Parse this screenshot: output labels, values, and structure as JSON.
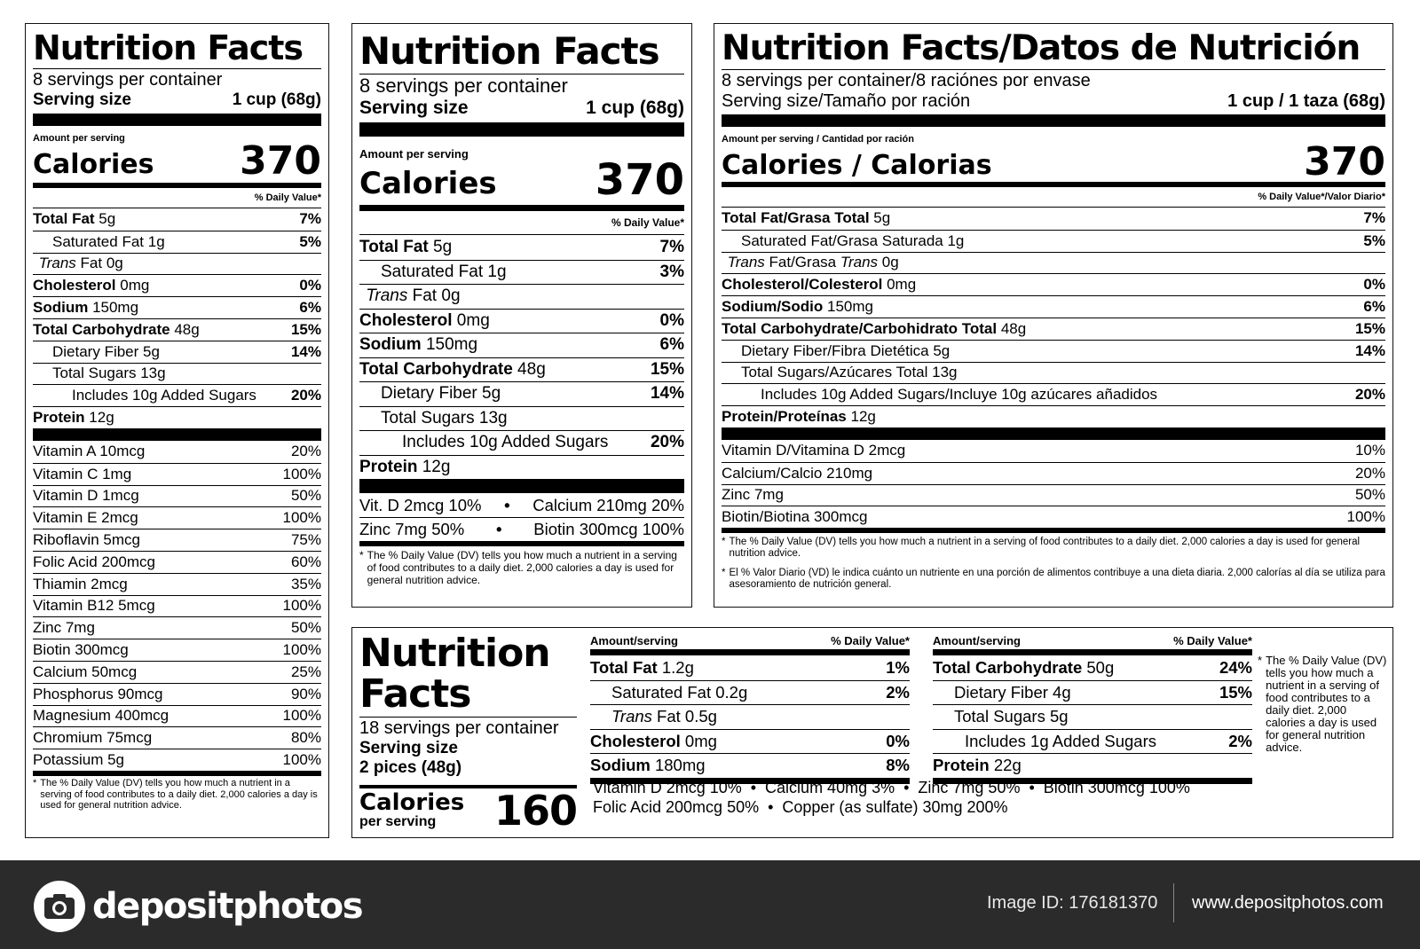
{
  "label1": {
    "title": "Nutrition Facts",
    "servings": "8 servings per container",
    "serving_size_label": "Serving size",
    "serving_size_value": "1 cup (68g)",
    "amount_per_serving": "Amount per serving",
    "calories_label": "Calories",
    "calories_value": "370",
    "dv_header": "% Daily Value*",
    "nutrients": [
      {
        "name": "Total Fat",
        "amount": "5g",
        "dv": "7%",
        "bold": true
      },
      {
        "name": "Saturated Fat",
        "amount": "1g",
        "dv": "5%",
        "indent": 1
      },
      {
        "name": "Trans",
        "suffix": " Fat",
        "amount": "0g",
        "dv": "",
        "indent": 0.3,
        "italic": true
      },
      {
        "name": "Cholesterol",
        "amount": "0mg",
        "dv": "0%",
        "bold": true
      },
      {
        "name": "Sodium",
        "amount": "150mg",
        "dv": "6%",
        "bold": true
      },
      {
        "name": "Total Carbohydrate",
        "amount": "48g",
        "dv": "15%",
        "bold": true
      },
      {
        "name": "Dietary Fiber",
        "amount": "5g",
        "dv": "14%",
        "indent": 1
      },
      {
        "name": "Total Sugars",
        "amount": "13g",
        "dv": "",
        "indent": 1
      },
      {
        "name": "Includes 10g Added Sugars",
        "amount": "",
        "dv": "20%",
        "indent": 2
      },
      {
        "name": "Protein",
        "amount": "12g",
        "dv": "",
        "bold": true
      }
    ],
    "vitamins": [
      {
        "name": "Vitamin A 10mcg",
        "dv": "20%"
      },
      {
        "name": "Vitamin C 1mg",
        "dv": "100%"
      },
      {
        "name": "Vitamin D 1mcg",
        "dv": "50%"
      },
      {
        "name": "Vitamin E 2mcg",
        "dv": "100%"
      },
      {
        "name": "Riboflavin 5mcg",
        "dv": "75%"
      },
      {
        "name": "Folic Acid 200mcg",
        "dv": "60%"
      },
      {
        "name": "Thiamin 2mcg",
        "dv": "35%"
      },
      {
        "name": "Vitamin B12 5mcg",
        "dv": "100%"
      },
      {
        "name": "Zinc 7mg",
        "dv": "50%"
      },
      {
        "name": "Biotin 300mcg",
        "dv": "100%"
      },
      {
        "name": "Calcium 50mcg",
        "dv": "25%"
      },
      {
        "name": "Phosphorus 90mcg",
        "dv": "90%"
      },
      {
        "name": "Magnesium 400mcg",
        "dv": "100%"
      },
      {
        "name": "Chromium 75mcg",
        "dv": "80%"
      },
      {
        "name": "Potassium 5g",
        "dv": "100%"
      }
    ],
    "footnote_mark": "*",
    "footnote": "The % Daily Value (DV) tells you how much a nutrient in a serving of food contributes to a daily diet. 2,000 calories a day is used for general nutrition advice."
  },
  "label2": {
    "title": "Nutrition Facts",
    "servings": "8 servings per container",
    "serving_size_label": "Serving size",
    "serving_size_value": "1 cup (68g)",
    "amount_per_serving": "Amount per serving",
    "calories_label": "Calories",
    "calories_value": "370",
    "dv_header": "% Daily Value*",
    "nutrients": [
      {
        "name": "Total Fat",
        "amount": "5g",
        "dv": "7%",
        "bold": true
      },
      {
        "name": "Saturated Fat",
        "amount": "1g",
        "dv": "3%",
        "indent": 1
      },
      {
        "name": "Trans",
        "suffix": " Fat",
        "amount": "0g",
        "dv": "",
        "indent": 0.3,
        "italic": true
      },
      {
        "name": "Cholesterol",
        "amount": "0mg",
        "dv": "0%",
        "bold": true
      },
      {
        "name": "Sodium",
        "amount": "150mg",
        "dv": "6%",
        "bold": true
      },
      {
        "name": "Total Carbohydrate",
        "amount": "48g",
        "dv": "15%",
        "bold": true
      },
      {
        "name": "Dietary Fiber",
        "amount": "5g",
        "dv": "14%",
        "indent": 1
      },
      {
        "name": "Total Sugars",
        "amount": "13g",
        "dv": "",
        "indent": 1
      },
      {
        "name": "Includes 10g Added Sugars",
        "amount": "",
        "dv": "20%",
        "indent": 2
      },
      {
        "name": "Protein",
        "amount": "12g",
        "dv": "",
        "bold": true
      }
    ],
    "vitamin_rows": [
      [
        "Vit. D 2mcg 10%",
        "Calcium 210mg 20%"
      ],
      [
        "Zinc 7mg 50%",
        "Biotin 300mcg 100%"
      ]
    ],
    "bullet": "•",
    "footnote_mark": "*",
    "footnote": "The % Daily Value (DV) tells you how much a nutrient in a serving of food contributes to a daily diet. 2,000 calories a day is used for general nutrition advice."
  },
  "label3": {
    "title": "Nutrition Facts/Datos de Nutrición",
    "servings": "8 servings per container/8 raciónes por envase",
    "serving_size_label": "Serving size/Tamaño por ración",
    "serving_size_value": "1 cup / 1 taza (68g)",
    "amount_per_serving": "Amount per serving / Cantidad por ración",
    "calories_label": "Calories / Calorias",
    "calories_value": "370",
    "dv_header": "% Daily Value*/Valor Diario*",
    "nutrients": [
      {
        "name": "Total Fat/Grasa Total",
        "amount": "5g",
        "dv": "7%",
        "bold": true
      },
      {
        "name": "Saturated Fat/Grasa Saturada",
        "amount": "1g",
        "dv": "5%",
        "indent": 1
      },
      {
        "name": "Trans",
        "suffix": " Fat/Grasa ",
        "suffix_italic": "Trans",
        "amount": "0g",
        "dv": "",
        "indent": 0.3,
        "italic": true
      },
      {
        "name": "Cholesterol/Colesterol",
        "amount": "0mg",
        "dv": "0%",
        "bold": true
      },
      {
        "name": "Sodium/Sodio",
        "amount": "150mg",
        "dv": "6%",
        "bold": true
      },
      {
        "name": "Total Carbohydrate/Carbohidrato Total",
        "amount": "48g",
        "dv": "15%",
        "bold": true
      },
      {
        "name": "Dietary Fiber/Fibra Dietética",
        "amount": "5g",
        "dv": "14%",
        "indent": 1
      },
      {
        "name": "Total Sugars/Azúcares Total",
        "amount": "13g",
        "dv": "",
        "indent": 1
      },
      {
        "name": "Includes 10g Added Sugars/Incluye 10g azúcares añadidos",
        "amount": "",
        "dv": "20%",
        "indent": 2
      },
      {
        "name": "Protein/Proteínas",
        "amount": "12g",
        "dv": "",
        "bold": true
      }
    ],
    "vitamins": [
      {
        "name": "Vitamin D/Vitamina D 2mcg",
        "dv": "10%"
      },
      {
        "name": "Calcium/Calcio 210mg",
        "dv": "20%"
      },
      {
        "name": "Zinc 7mg",
        "dv": "50%"
      },
      {
        "name": "Biotin/Biotina 300mcg",
        "dv": "100%"
      }
    ],
    "footnote_mark": "*",
    "footnote_en": "The % Daily Value (DV) tells you how much a nutrient in a serving of food contributes to a daily diet. 2,000 calories a day is used for general nutrition advice.",
    "footnote_es": "El % Valor Diario (VD) le indica cuánto un nutriente en una porción de alimentos contribuye a una dieta diaria. 2,000 calorías al día se utiliza para asesoramiento de nutrición general."
  },
  "label4": {
    "title_line1": "Nutrition",
    "title_line2": "Facts",
    "servings": "18 servings per container",
    "serving_size_label": "Serving size",
    "serving_size_value": "2 pices (48g)",
    "calories_label": "Calories",
    "calories_sub": "per serving",
    "calories_value": "160",
    "col1_header_amount": "Amount/serving",
    "col1_header_dv": "% Daily Value*",
    "col1": [
      {
        "name": "Total Fat",
        "amount": "1.2g",
        "dv": "1%",
        "bold": true
      },
      {
        "name": "Saturated Fat",
        "amount": "0.2g",
        "dv": "2%",
        "indent": 1
      },
      {
        "name": "Trans",
        "suffix": " Fat",
        "amount": "0.5g",
        "dv": "",
        "indent": 1,
        "italic": true
      },
      {
        "name": "Cholesterol",
        "amount": "0mg",
        "dv": "0%",
        "bold": true
      },
      {
        "name": "Sodium",
        "amount": "180mg",
        "dv": "8%",
        "bold": true
      }
    ],
    "col2_header_amount": "Amount/serving",
    "col2_header_dv": "% Daily Value*",
    "col2": [
      {
        "name": "Total Carbohydrate",
        "amount": "50g",
        "dv": "24%",
        "bold": true
      },
      {
        "name": "Dietary Fiber",
        "amount": "4g",
        "dv": "15%",
        "indent": 1
      },
      {
        "name": "Total Sugars",
        "amount": "5g",
        "dv": "",
        "indent": 1
      },
      {
        "name": "Includes 1g Added Sugars",
        "amount": "",
        "dv": "2%",
        "indent": 1.5
      },
      {
        "name": "Protein",
        "amount": "22g",
        "dv": "",
        "bold": true
      }
    ],
    "vitamins_line1": "Vitamin D 2mcg 10%  •  Calcium 40mg 3%  •  Zinc 7mg 50%  •  Biotin 300mcg 100%",
    "vitamins_line2": "Folic Acid 200mcg 50%  •  Copper (as sulfate) 30mg 200%",
    "footnote_mark": "*",
    "footnote": "The % Daily Value (DV) tells you how much a nutrient in a serving of food contributes to a daily diet. 2,000 calories a day is used for general nutrition advice."
  },
  "branding": {
    "logo_text": "depositphotos",
    "logo_icon": "camera-icon",
    "image_id": "Image ID: 176181370",
    "website": "www.depositphotos.com",
    "band_color": "#2b2b2b"
  }
}
